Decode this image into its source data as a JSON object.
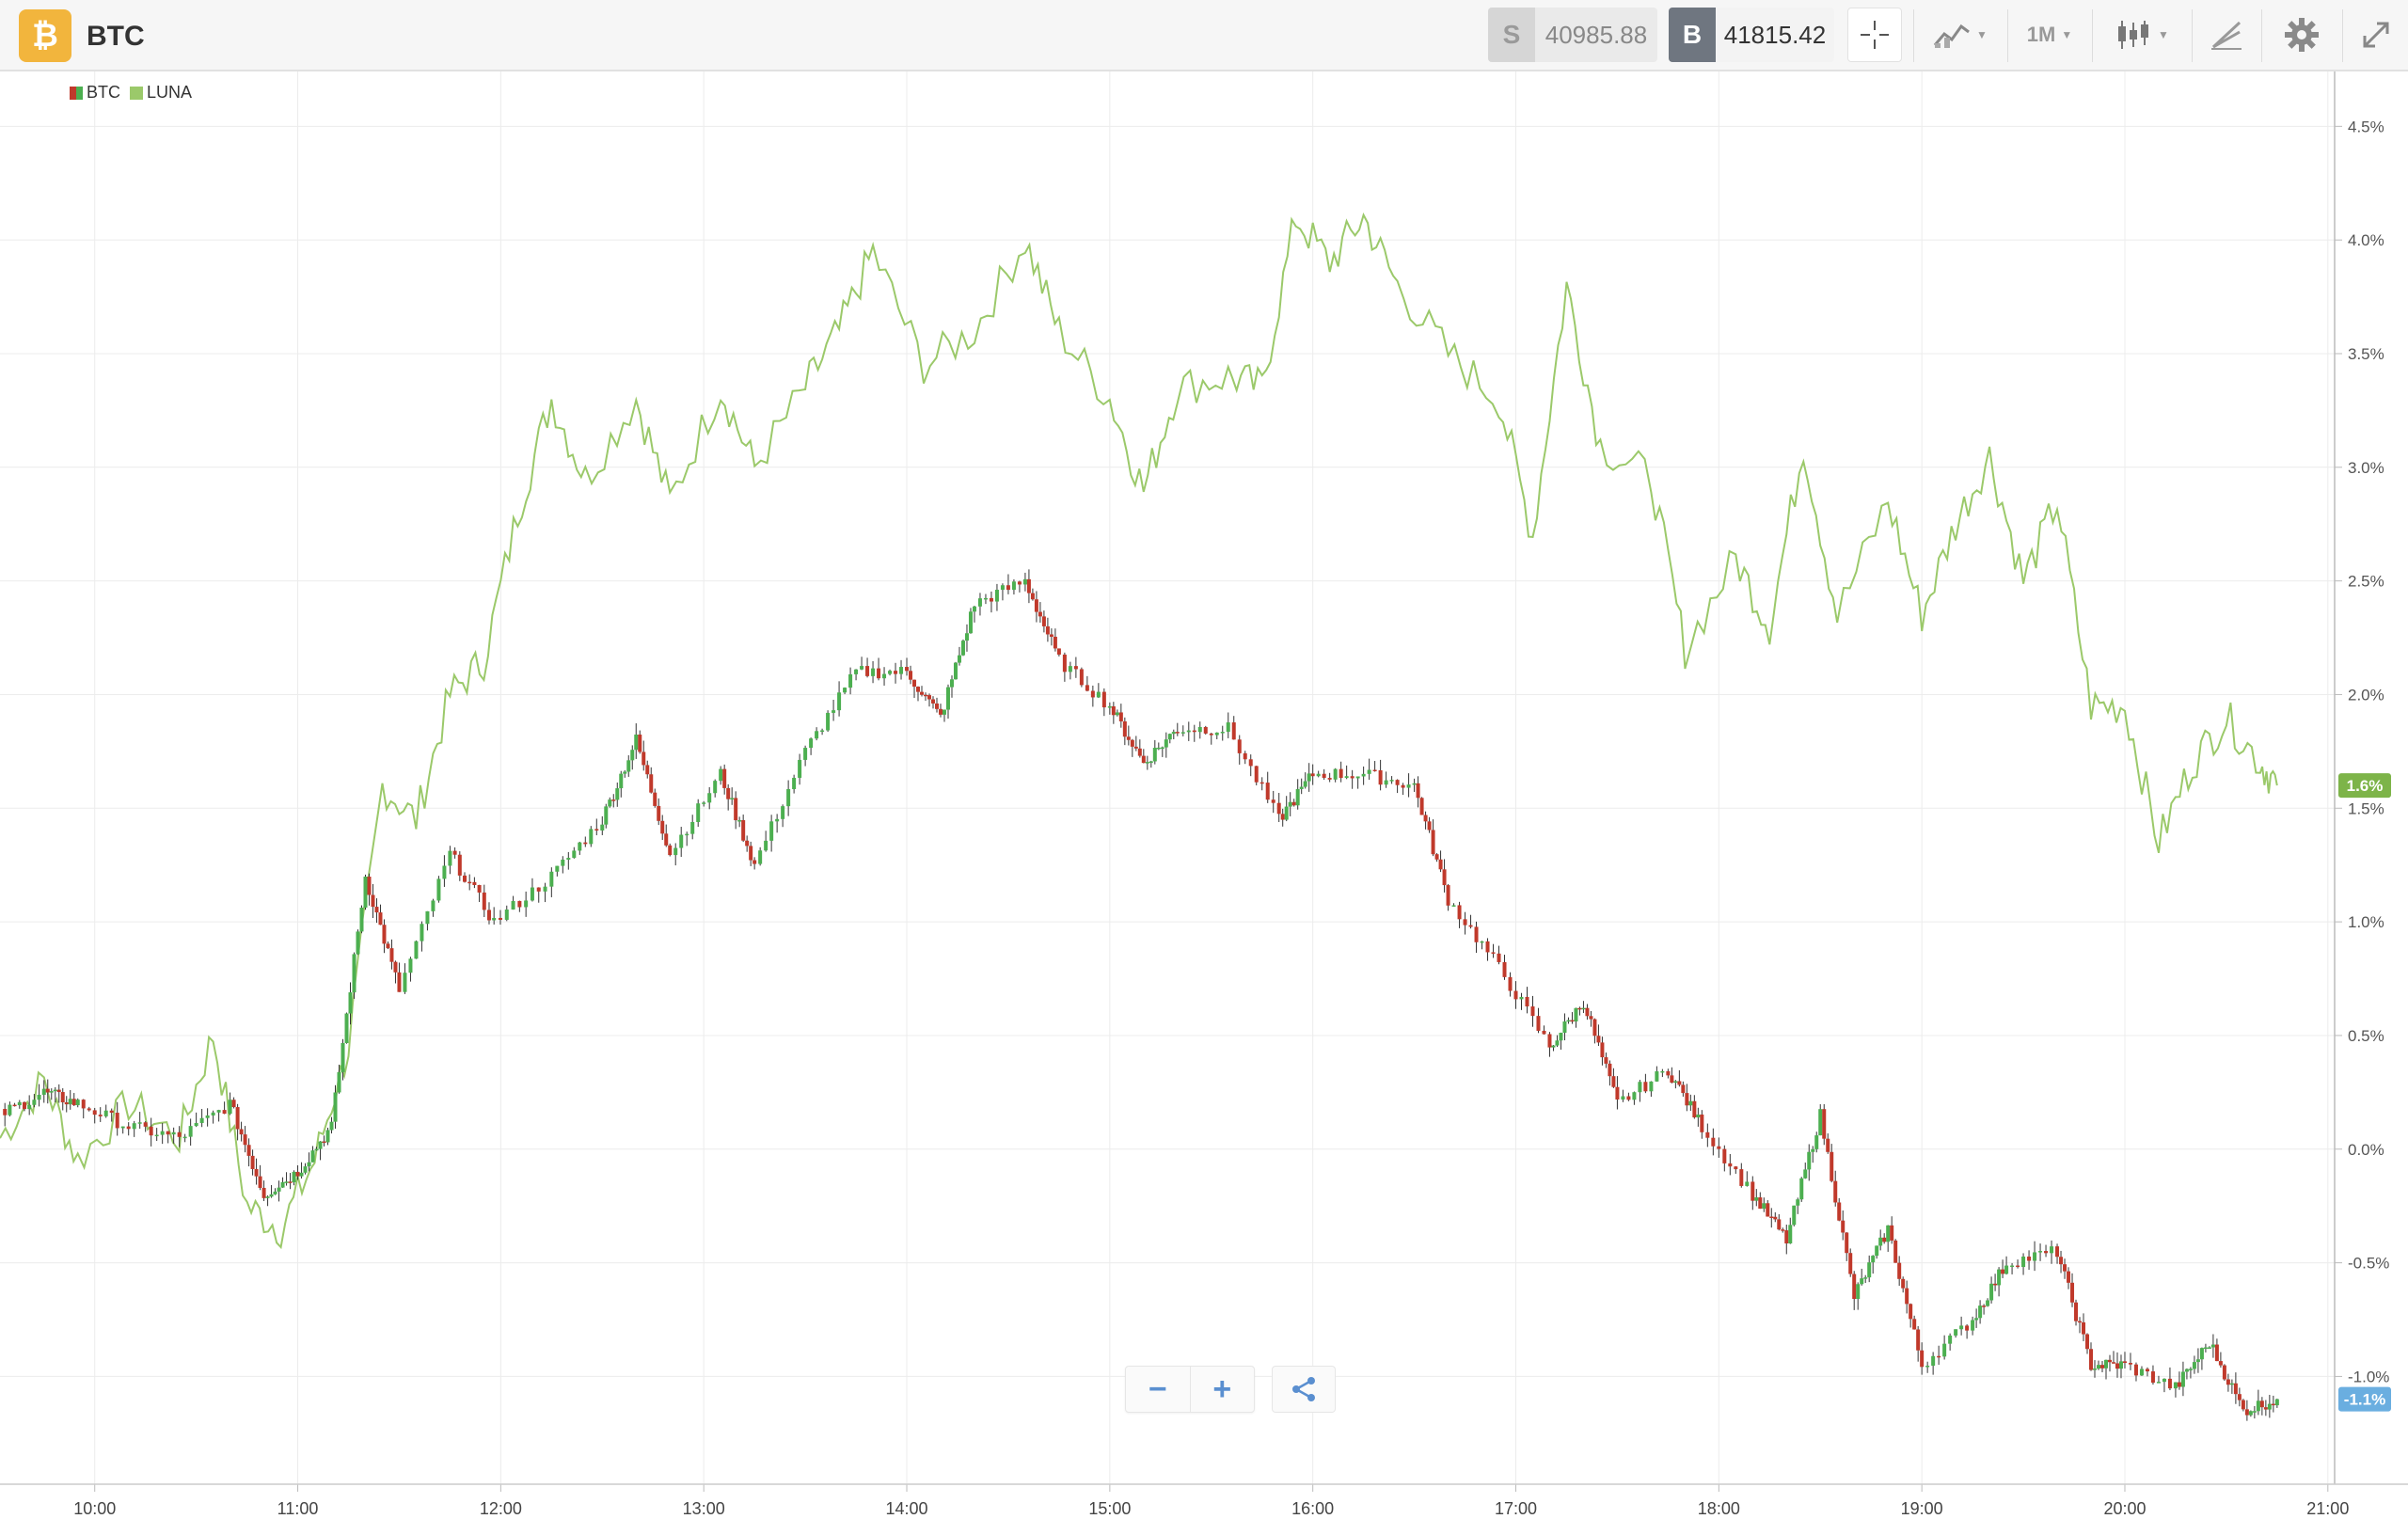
{
  "header": {
    "coin_glyph": "₿",
    "title": "BTC",
    "sell": {
      "letter": "S",
      "price": "40985.88"
    },
    "buy": {
      "letter": "B",
      "price": "41815.42"
    },
    "timeframe": "1M",
    "icons": [
      "crosshair-icon",
      "indicators-icon",
      "candles-icon",
      "draw-icon",
      "gear-icon",
      "expand-icon"
    ]
  },
  "legend": [
    {
      "label": "BTC",
      "color": "#8a5a2b"
    },
    {
      "label": "LUNA",
      "color": "#9bc96a"
    }
  ],
  "colors": {
    "up": "#4caf50",
    "down": "#c0392b",
    "luna": "#9bc96a",
    "luna_badge": "#7db449",
    "btc_badge": "#6aaee0",
    "grid": "#ececec"
  },
  "chart_data": {
    "type": "line",
    "x_axis": {
      "ticks": [
        "10:00",
        "11:00",
        "12:00",
        "13:00",
        "14:00",
        "15:00",
        "16:00",
        "17:00",
        "18:00",
        "19:00",
        "20:00",
        "21:00"
      ],
      "range": [
        "09:32",
        "21:02"
      ]
    },
    "y_axis": {
      "ticks": [
        "4.5%",
        "4.0%",
        "3.5%",
        "3.0%",
        "2.5%",
        "2.0%",
        "1.5%",
        "1.0%",
        "0.5%",
        "0.0%",
        "-0.5%",
        "-1.0%"
      ],
      "range": [
        -1.35,
        4.7
      ],
      "unit": "%"
    },
    "series": [
      {
        "name": "BTC",
        "style": "candlestick",
        "last_label": "-1.1%",
        "points": [
          [
            "09:32",
            0.15
          ],
          [
            "09:45",
            0.25
          ],
          [
            "09:55",
            0.2
          ],
          [
            "10:10",
            0.1
          ],
          [
            "10:25",
            0.05
          ],
          [
            "10:40",
            0.2
          ],
          [
            "10:50",
            -0.2
          ],
          [
            "11:00",
            -0.1
          ],
          [
            "11:10",
            0.1
          ],
          [
            "11:20",
            1.2
          ],
          [
            "11:30",
            0.7
          ],
          [
            "11:45",
            1.3
          ],
          [
            "11:58",
            1.0
          ],
          [
            "12:15",
            1.2
          ],
          [
            "12:30",
            1.45
          ],
          [
            "12:40",
            1.8
          ],
          [
            "12:50",
            1.3
          ],
          [
            "13:05",
            1.65
          ],
          [
            "13:15",
            1.25
          ],
          [
            "13:30",
            1.75
          ],
          [
            "13:45",
            2.1
          ],
          [
            "14:00",
            2.1
          ],
          [
            "14:10",
            1.9
          ],
          [
            "14:20",
            2.4
          ],
          [
            "14:35",
            2.5
          ],
          [
            "14:45",
            2.15
          ],
          [
            "15:00",
            1.95
          ],
          [
            "15:10",
            1.7
          ],
          [
            "15:20",
            1.85
          ],
          [
            "15:35",
            1.85
          ],
          [
            "15:50",
            1.45
          ],
          [
            "16:00",
            1.65
          ],
          [
            "16:15",
            1.65
          ],
          [
            "16:30",
            1.6
          ],
          [
            "16:40",
            1.1
          ],
          [
            "16:55",
            0.8
          ],
          [
            "17:10",
            0.45
          ],
          [
            "17:20",
            0.65
          ],
          [
            "17:30",
            0.2
          ],
          [
            "17:45",
            0.35
          ],
          [
            "17:55",
            0.1
          ],
          [
            "18:10",
            -0.2
          ],
          [
            "18:20",
            -0.4
          ],
          [
            "18:30",
            0.15
          ],
          [
            "18:40",
            -0.65
          ],
          [
            "18:50",
            -0.35
          ],
          [
            "19:00",
            -0.95
          ],
          [
            "19:15",
            -0.75
          ],
          [
            "19:25",
            -0.5
          ],
          [
            "19:40",
            -0.45
          ],
          [
            "19:50",
            -0.95
          ],
          [
            "20:00",
            -0.95
          ],
          [
            "20:15",
            -1.05
          ],
          [
            "20:25",
            -0.85
          ],
          [
            "20:35",
            -1.15
          ],
          [
            "20:45",
            -1.1
          ]
        ]
      },
      {
        "name": "LUNA",
        "style": "line",
        "last_label": "1.6%",
        "points": [
          [
            "09:32",
            0.05
          ],
          [
            "09:45",
            0.3
          ],
          [
            "09:55",
            -0.05
          ],
          [
            "10:10",
            0.2
          ],
          [
            "10:25",
            0.05
          ],
          [
            "10:35",
            0.5
          ],
          [
            "10:45",
            -0.25
          ],
          [
            "10:55",
            -0.35
          ],
          [
            "11:05",
            -0.05
          ],
          [
            "11:15",
            0.45
          ],
          [
            "11:25",
            1.6
          ],
          [
            "11:35",
            1.45
          ],
          [
            "11:45",
            2.0
          ],
          [
            "11:55",
            2.15
          ],
          [
            "12:05",
            2.8
          ],
          [
            "12:15",
            3.3
          ],
          [
            "12:25",
            2.95
          ],
          [
            "12:40",
            3.3
          ],
          [
            "12:50",
            2.85
          ],
          [
            "13:05",
            3.35
          ],
          [
            "13:15",
            3.0
          ],
          [
            "13:30",
            3.35
          ],
          [
            "13:40",
            3.6
          ],
          [
            "13:50",
            3.95
          ],
          [
            "14:05",
            3.45
          ],
          [
            "14:20",
            3.6
          ],
          [
            "14:35",
            4.0
          ],
          [
            "14:45",
            3.6
          ],
          [
            "15:00",
            3.3
          ],
          [
            "15:10",
            2.9
          ],
          [
            "15:20",
            3.35
          ],
          [
            "15:35",
            3.4
          ],
          [
            "15:45",
            3.35
          ],
          [
            "15:55",
            4.1
          ],
          [
            "16:05",
            3.9
          ],
          [
            "16:15",
            4.1
          ],
          [
            "16:25",
            3.8
          ],
          [
            "16:40",
            3.5
          ],
          [
            "16:55",
            3.3
          ],
          [
            "17:05",
            2.7
          ],
          [
            "17:15",
            3.8
          ],
          [
            "17:25",
            3.1
          ],
          [
            "17:40",
            2.95
          ],
          [
            "17:50",
            2.2
          ],
          [
            "18:05",
            2.6
          ],
          [
            "18:15",
            2.3
          ],
          [
            "18:25",
            3.1
          ],
          [
            "18:35",
            2.35
          ],
          [
            "18:50",
            2.85
          ],
          [
            "19:00",
            2.35
          ],
          [
            "19:10",
            2.75
          ],
          [
            "19:20",
            3.05
          ],
          [
            "19:30",
            2.5
          ],
          [
            "19:40",
            2.85
          ],
          [
            "19:50",
            1.95
          ],
          [
            "20:00",
            1.95
          ],
          [
            "20:10",
            1.35
          ],
          [
            "20:20",
            1.7
          ],
          [
            "20:30",
            1.9
          ],
          [
            "20:40",
            1.7
          ],
          [
            "20:45",
            1.6
          ]
        ]
      }
    ]
  },
  "controls": {
    "zoom_out": "−",
    "zoom_in": "+"
  }
}
